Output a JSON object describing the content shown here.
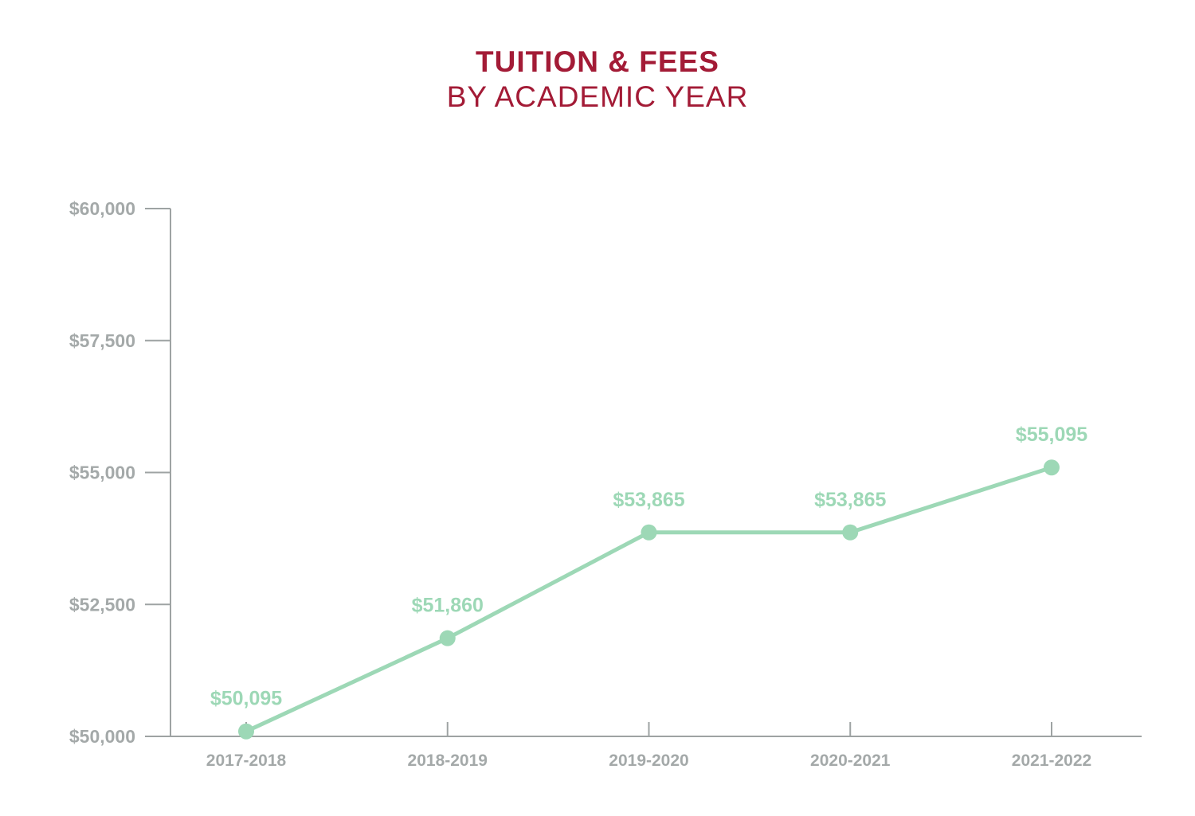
{
  "colors": {
    "title": "#a31b36",
    "axis": "#9ea3a3",
    "tick_text": "#a4a9a9",
    "series": "#9dd8b6",
    "label": "#9dd8b6"
  },
  "chart_data": {
    "type": "line",
    "title": "TUITION & FEES",
    "subtitle": "BY ACADEMIC YEAR",
    "xlabel": "",
    "ylabel": "",
    "categories": [
      "2017-2018",
      "2018-2019",
      "2019-2020",
      "2020-2021",
      "2021-2022"
    ],
    "values": [
      50095,
      51860,
      53865,
      53865,
      55095
    ],
    "data_labels": [
      "$50,095",
      "$51,860",
      "$53,865",
      "$53,865",
      "$55,095"
    ],
    "ylim": [
      50000,
      60000
    ],
    "yticks": [
      50000,
      52500,
      55000,
      57500,
      60000
    ],
    "ytick_labels": [
      "$50,000",
      "$52,500",
      "$55,000",
      "$57,500",
      "$60,000"
    ],
    "grid": false,
    "legend": "none"
  }
}
